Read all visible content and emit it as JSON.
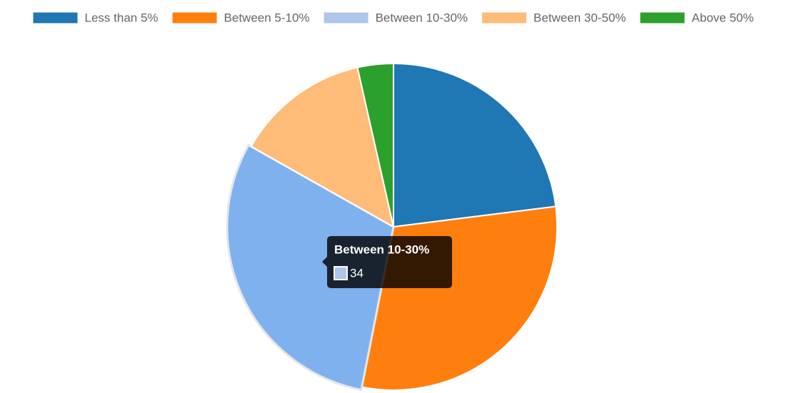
{
  "chart_data": {
    "type": "pie",
    "categories": [
      "Less than 5%",
      "Between 5-10%",
      "Between 10-30%",
      "Between 30-50%",
      "Above 50%"
    ],
    "values": [
      26,
      34,
      34,
      15,
      4
    ],
    "colors": [
      "#1f77b4",
      "#ff7f0e",
      "#aec7e8",
      "#ffbb78",
      "#2ca02c"
    ],
    "legend": "top",
    "tooltip": {
      "index": 2
    }
  }
}
